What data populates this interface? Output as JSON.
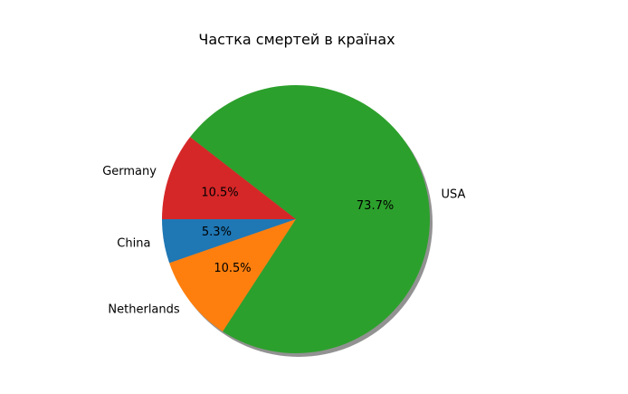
{
  "chart_data": {
    "type": "pie",
    "title": "Частка смертей в країнах",
    "labels": [
      "China",
      "Netherlands",
      "USA",
      "Germany"
    ],
    "values": [
      5.3,
      10.5,
      73.7,
      10.5
    ],
    "percent_labels": [
      "5.3%",
      "10.5%",
      "73.7%",
      "10.5%"
    ],
    "colors": [
      "#1f77b4",
      "#ff7f0e",
      "#2ca02c",
      "#d62728"
    ],
    "start_angle_deg": 180,
    "direction": "counterclockwise",
    "shadow": true
  }
}
